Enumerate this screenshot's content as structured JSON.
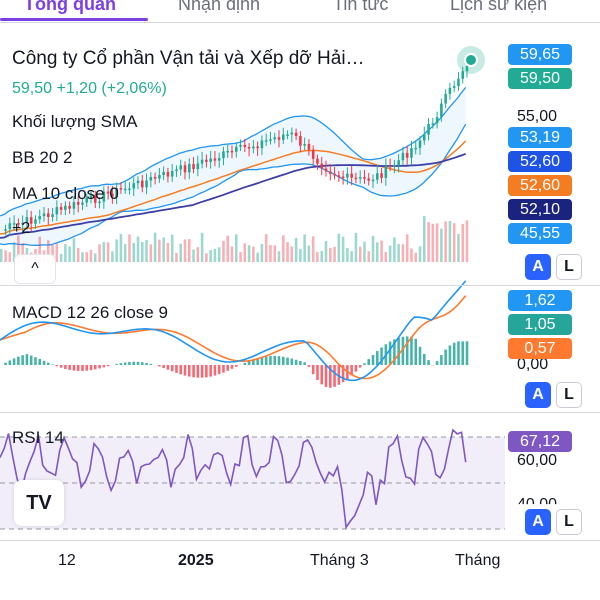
{
  "tabs": [
    {
      "label": "Tổng quan",
      "active": true
    },
    {
      "label": "Nhận định",
      "active": false
    },
    {
      "label": "Tin tức",
      "active": false
    },
    {
      "label": "Lịch sử kiện",
      "active": false
    }
  ],
  "header": {
    "company": "Công ty Cổ phần Vận tải và Xếp dỡ Hải…",
    "change": "59,50  +1,20 (+2,06%)"
  },
  "indicators": {
    "volume": "Khối lượng SMA",
    "bb": "BB 20 2",
    "ma": "MA 10 close 0",
    "macd": "MACD 12 26 close 9",
    "rsi": "RSI 14",
    "plus": "+2",
    "collapse_icon": "^"
  },
  "price_axis": {
    "tick": "55,00",
    "tags": [
      {
        "value": "59,65",
        "color": "#2196f3"
      },
      {
        "value": "59,50",
        "color": "#22ab94"
      },
      {
        "value": "53,19",
        "color": "#2196f3"
      },
      {
        "value": "52,60",
        "color": "#1e53e5"
      },
      {
        "value": "52,60",
        "color": "#f57c20"
      },
      {
        "value": "52,10",
        "color": "#1a237e"
      },
      {
        "value": "45,55",
        "color": "#2196f3"
      }
    ]
  },
  "macd_axis": {
    "tick": "0,00",
    "tags": [
      {
        "value": "1,62",
        "color": "#2196f3"
      },
      {
        "value": "1,05",
        "color": "#26a69a"
      },
      {
        "value": "0,57",
        "color": "#ff7a2f"
      }
    ]
  },
  "rsi_axis": {
    "tick_top": "60,00",
    "tick_bottom": "40,00",
    "tags": [
      {
        "value": "67,12",
        "color": "#7e57c2"
      }
    ]
  },
  "scale_buttons": {
    "auto": "A",
    "log": "L"
  },
  "time_axis": [
    {
      "label": "12",
      "bold": false
    },
    {
      "label": "2025",
      "bold": true
    },
    {
      "label": "Tháng 3",
      "bold": false
    },
    {
      "label": "Tháng",
      "bold": false
    }
  ],
  "logo_text": "TV",
  "colors": {
    "accent": "#7b3fe4",
    "up": "#22ab94",
    "down": "#f23645",
    "bb": "#2196f3",
    "ma_orange": "#f57c20",
    "ma_navy": "#3d3fa8",
    "macd_line": "#2196f3",
    "signal_line": "#ff7a2f",
    "rsi_line": "#7e57c2"
  }
}
